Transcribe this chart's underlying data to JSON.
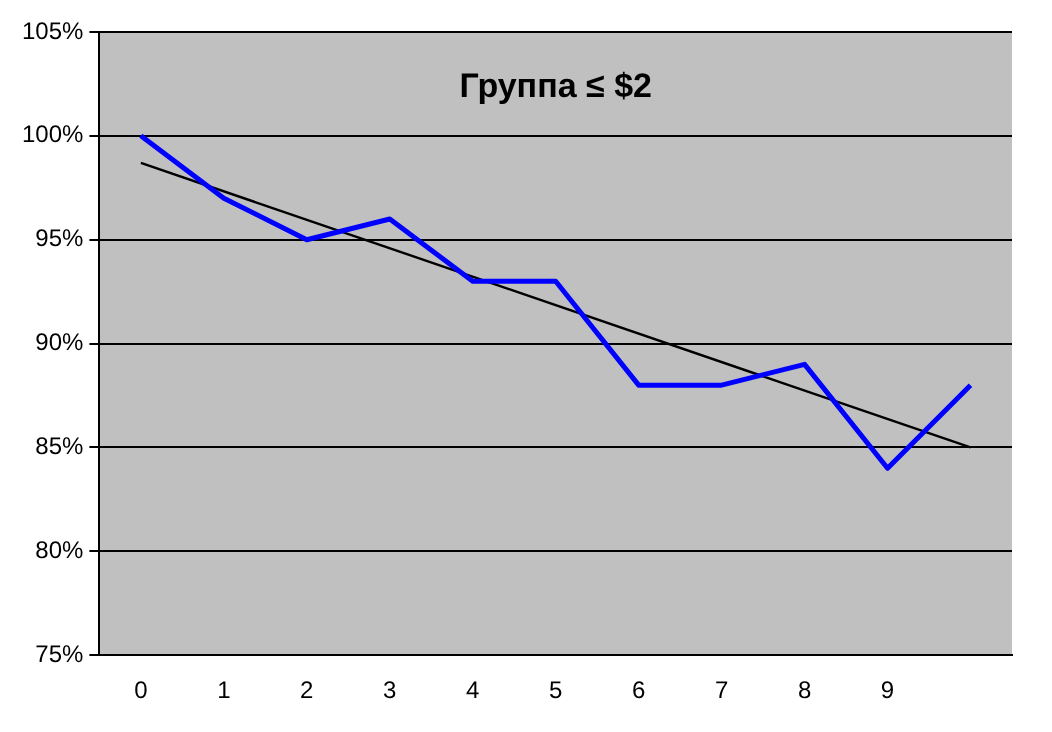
{
  "chart_data": {
    "type": "line",
    "title": "Группа ≤ $2",
    "categories": [
      "0",
      "1",
      "2",
      "3",
      "4",
      "5",
      "6",
      "7",
      "8",
      "9",
      null
    ],
    "series": [
      {
        "color": "#0000ff",
        "values": [
          100,
          97,
          95,
          96,
          93,
          93,
          88,
          88,
          89,
          84,
          88
        ]
      },
      {
        "color": "#000000",
        "values": [
          98.7,
          null,
          null,
          null,
          null,
          null,
          null,
          null,
          null,
          null,
          85
        ]
      }
    ],
    "ylim": [
      75,
      105
    ],
    "yticks": [
      {
        "value": 75,
        "label": "75%"
      },
      {
        "value": 80,
        "label": "80%"
      },
      {
        "value": 85,
        "label": "85%"
      },
      {
        "value": 90,
        "label": "90%"
      },
      {
        "value": 95,
        "label": "95%"
      },
      {
        "value": 100,
        "label": "100%"
      },
      {
        "value": 105,
        "label": "105%"
      }
    ],
    "grid": "y",
    "marker": "none",
    "legend": false
  }
}
